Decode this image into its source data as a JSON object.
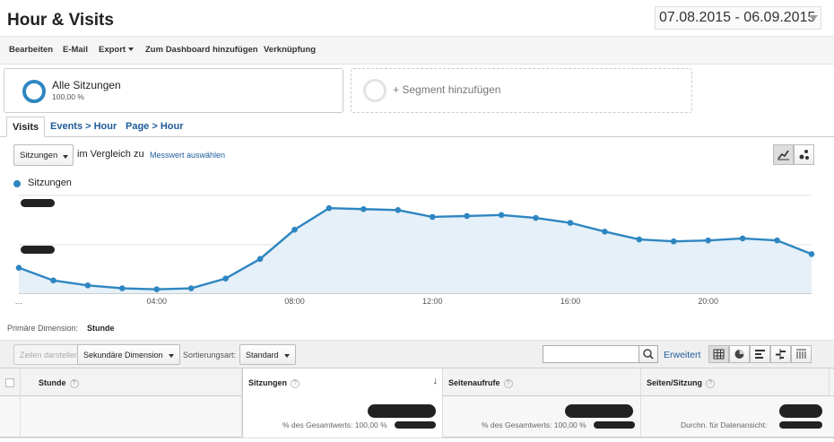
{
  "header": {
    "title": "Hour & Visits",
    "date_start": "07.08.2015",
    "date_sep": " - ",
    "date_end": "06.09.2015"
  },
  "toolbar": {
    "edit": "Bearbeiten",
    "email": "E-Mail",
    "export": "Export",
    "add_dashboard": "Zum Dashboard hinzufügen",
    "shortcut": "Verknüpfung"
  },
  "segments": {
    "active_name": "Alle Sitzungen",
    "active_pct": "100,00 %",
    "add_label": "+ Segment hinzufügen"
  },
  "tabs": [
    {
      "label": "Visits",
      "active": true
    },
    {
      "label": "Events > Hour",
      "active": false
    },
    {
      "label": "Page > Hour",
      "active": false
    }
  ],
  "metric": {
    "selected": "Sitzungen",
    "compare_text": "im Vergleich zu",
    "compare_link": "Messwert auswählen"
  },
  "chart_data": {
    "type": "area",
    "legend": [
      "Sitzungen"
    ],
    "color": "#2e86c1",
    "x_tick_labels": [
      "…",
      "04:00",
      "08:00",
      "12:00",
      "16:00",
      "20:00"
    ],
    "x": [
      0,
      1,
      2,
      3,
      4,
      5,
      6,
      7,
      8,
      9,
      10,
      11,
      12,
      13,
      14,
      15,
      16,
      17,
      18,
      19,
      20,
      21,
      22,
      23
    ],
    "series": [
      {
        "name": "Sitzungen",
        "values": [
          0.26,
          0.13,
          0.08,
          0.05,
          0.04,
          0.05,
          0.15,
          0.35,
          0.65,
          0.87,
          0.86,
          0.85,
          0.78,
          0.79,
          0.8,
          0.77,
          0.72,
          0.63,
          0.55,
          0.53,
          0.54,
          0.56,
          0.54,
          0.4
        ]
      }
    ],
    "ylim": [
      0,
      1
    ],
    "y_tick_labels_redacted": true,
    "grid": true
  },
  "dimension": {
    "label": "Primäre Dimension:",
    "value": "Stunde"
  },
  "controls": {
    "plot_rows": "Zeilen darstellen",
    "secondary_dim": "Sekundäre Dimension",
    "sort_label": "Sortierungsart:",
    "sort_value": "Standard",
    "advanced": "Erweitert"
  },
  "table": {
    "columns": [
      "Stunde",
      "Sitzungen",
      "Seitenaufrufe",
      "Seiten/Sitzung"
    ],
    "totals": {
      "sessions_sub": "% des Gesamtwerts: 100,00 %",
      "pageviews_sub": "% des Gesamtwerts: 100,00 %",
      "pps_sub": "Durchn. für Datenansicht:"
    }
  }
}
